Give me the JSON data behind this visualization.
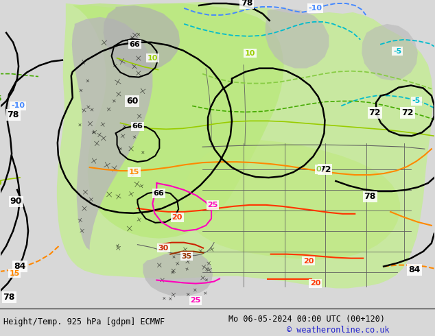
{
  "figsize": [
    6.34,
    4.9
  ],
  "dpi": 100,
  "bottom_left_text": "Height/Temp. 925 hPa [gdpm] ECMWF",
  "bottom_right_text": "Mo 06-05-2024 00:00 UTC (00+120)",
  "bottom_copyright": "© weatheronline.co.uk",
  "bg_color": "#d8d8d8",
  "land_green": "#c8e8a0",
  "land_green_bright": "#b0e060",
  "terrain_gray": "#b0b0b0",
  "water_color": "#e8e8f8",
  "font_size_bottom": 8.5,
  "font_size_copyright": 8.5
}
